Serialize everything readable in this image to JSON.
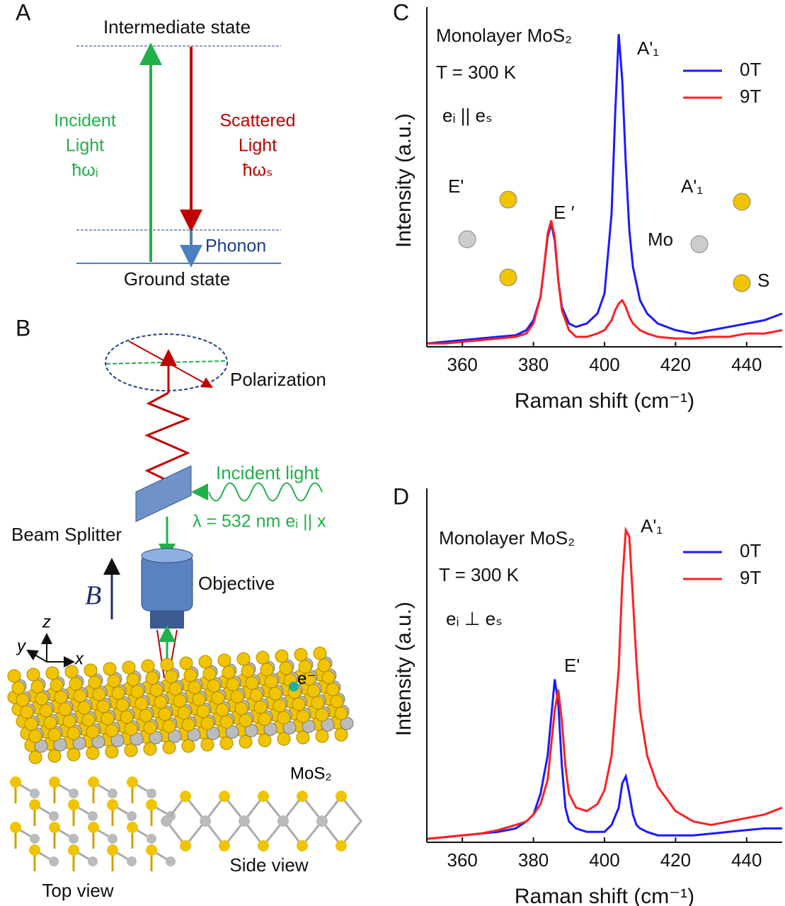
{
  "panel_labels": [
    "A",
    "B",
    "C",
    "D"
  ],
  "diagram_a": {
    "intermediate": "Intermediate state",
    "incident": [
      "Incident",
      "Light",
      "ħωᵢ"
    ],
    "scattered": [
      "Scattered",
      "Light",
      "ħωₛ"
    ],
    "phonon": "Phonon",
    "ground": "Ground state"
  },
  "diagram_b": {
    "polarization": "Polarization",
    "incident_light": "Incident light",
    "wavelength": "λ = 532 nm  eᵢ || x",
    "beam_splitter": "Beam Splitter",
    "objective": "Objective",
    "field": "B⃗",
    "axes": [
      "z",
      "y",
      "x"
    ],
    "electron": "e⁻",
    "material": "MoS₂",
    "top_view": "Top view",
    "side_view": "Side view"
  },
  "chart_data": [
    {
      "type": "line",
      "xlabel": "Raman shift (cm⁻¹)",
      "ylabel": "Intensity (a.u.)",
      "annotations": {
        "sample": "Monolayer MoS₂",
        "temperature": "T = 300 K",
        "polarization": "eᵢ || eₛ",
        "peak_e": "E ′",
        "peak_a": "A'₁",
        "inset_e": "E'",
        "inset_a": "A'₁",
        "mo": "Mo",
        "s": "S"
      },
      "x": [
        350,
        355,
        360,
        365,
        370,
        375,
        378,
        380,
        382,
        383,
        384,
        385,
        386,
        387,
        388,
        390,
        392,
        395,
        398,
        400,
        402,
        403,
        404,
        405,
        406,
        407,
        408,
        410,
        412,
        415,
        420,
        425,
        430,
        435,
        440,
        445,
        450
      ],
      "series": [
        {
          "name": "0T",
          "color": "#1a1aff",
          "values": [
            1,
            1.5,
            2,
            2.5,
            3,
            3.5,
            5,
            8,
            15,
            24,
            33,
            37,
            32,
            20,
            12,
            7,
            6,
            7,
            10,
            16,
            40,
            70,
            94,
            80,
            55,
            35,
            24,
            14,
            10,
            7,
            5,
            4,
            5,
            6,
            7,
            8,
            10
          ]
        },
        {
          "name": "9T",
          "color": "#ff2020",
          "values": [
            1,
            1,
            1.5,
            2,
            2.5,
            3,
            4,
            7,
            15,
            24,
            34,
            38,
            33,
            20,
            11,
            5,
            3,
            3,
            4,
            5,
            8,
            11,
            13,
            14,
            12,
            9,
            7,
            5,
            4,
            3,
            2.5,
            2.5,
            3,
            3,
            4,
            4,
            5
          ]
        }
      ],
      "xlim": [
        350,
        450
      ],
      "xticks": [
        360,
        380,
        400,
        420,
        440
      ],
      "ylim": [
        0,
        100
      ],
      "legend": "upper right"
    },
    {
      "type": "line",
      "xlabel": "Raman shift (cm⁻¹)",
      "ylabel": "Intensity (a.u.)",
      "annotations": {
        "sample": "Monolayer MoS₂",
        "temperature": "T = 300 K",
        "polarization": "eᵢ ⊥ eₛ",
        "peak_e": "E'",
        "peak_a": "A'₁"
      },
      "x": [
        350,
        355,
        360,
        365,
        370,
        375,
        378,
        380,
        382,
        384,
        385,
        386,
        387,
        388,
        389,
        390,
        392,
        395,
        398,
        400,
        402,
        404,
        405,
        406,
        407,
        408,
        409,
        410,
        412,
        415,
        420,
        425,
        430,
        435,
        440,
        445,
        450
      ],
      "series": [
        {
          "name": "0T",
          "color": "#1a1aff",
          "values": [
            1,
            1.5,
            2,
            2.5,
            3,
            4,
            6,
            8,
            14,
            25,
            36,
            47,
            40,
            22,
            10,
            6,
            4,
            3,
            3,
            3,
            5,
            10,
            17,
            19,
            14,
            8,
            5,
            4,
            3,
            2,
            2,
            2,
            2.5,
            3,
            3.5,
            4,
            4
          ]
        },
        {
          "name": "9T",
          "color": "#ff2020",
          "values": [
            1,
            1.5,
            2,
            2.5,
            3.5,
            5,
            6,
            8,
            11,
            18,
            28,
            38,
            44,
            35,
            22,
            14,
            10,
            9,
            11,
            15,
            25,
            50,
            75,
            90,
            88,
            70,
            52,
            38,
            25,
            16,
            9,
            6,
            5,
            6,
            7,
            8,
            10
          ]
        }
      ],
      "xlim": [
        350,
        450
      ],
      "xticks": [
        360,
        380,
        400,
        420,
        440
      ],
      "ylim": [
        0,
        100
      ],
      "legend": "upper right"
    }
  ]
}
